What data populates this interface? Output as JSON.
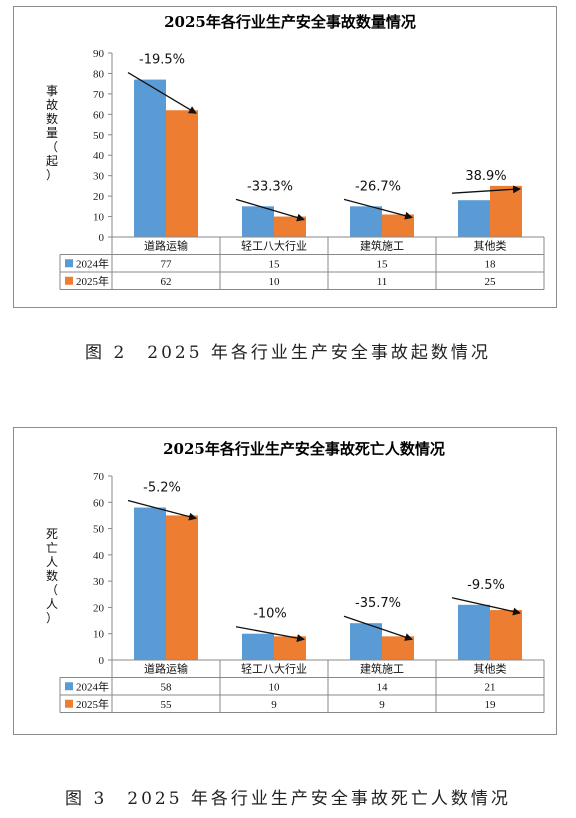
{
  "chart_data": [
    {
      "type": "bar",
      "title": "2025年各行业生产安全事故数量情况",
      "ylabel": "事故数量（起）",
      "xlabel": "",
      "ylim": [
        0,
        90
      ],
      "yticks": [
        "0",
        "10",
        "20",
        "30",
        "40",
        "50",
        "60",
        "70",
        "80",
        "90"
      ],
      "categories": [
        "道路运输",
        "轻工八大行业",
        "建筑施工",
        "其他类"
      ],
      "series": [
        {
          "name": "2024年",
          "color": "#5b9bd5",
          "values": [
            77,
            15,
            15,
            18
          ]
        },
        {
          "name": "2025年",
          "color": "#ed7d31",
          "values": [
            62,
            10,
            11,
            25
          ]
        }
      ],
      "annotations": [
        "-19.5%",
        "-33.3%",
        "-26.7%",
        "38.9%"
      ],
      "data_table": true,
      "grid": false
    },
    {
      "type": "bar",
      "title": "2025年各行业生产安全事故死亡人数情况",
      "ylabel": "死亡人数（人）",
      "xlabel": "",
      "ylim": [
        0,
        70
      ],
      "yticks": [
        "0",
        "10",
        "20",
        "30",
        "40",
        "50",
        "60",
        "70"
      ],
      "categories": [
        "道路运输",
        "轻工八大行业",
        "建筑施工",
        "其他类"
      ],
      "series": [
        {
          "name": "2024年",
          "color": "#5b9bd5",
          "values": [
            58,
            10,
            14,
            21
          ]
        },
        {
          "name": "2025年",
          "color": "#ed7d31",
          "values": [
            55,
            9,
            9,
            19
          ]
        }
      ],
      "annotations": [
        "-5.2%",
        "-10%",
        "-35.7%",
        "-9.5%"
      ],
      "data_table": true,
      "grid": false
    }
  ],
  "captions": {
    "figure2": "图 2　2025 年各行业生产安全事故起数情况",
    "figure3": "图 3　2025 年各行业生产安全事故死亡人数情况"
  }
}
